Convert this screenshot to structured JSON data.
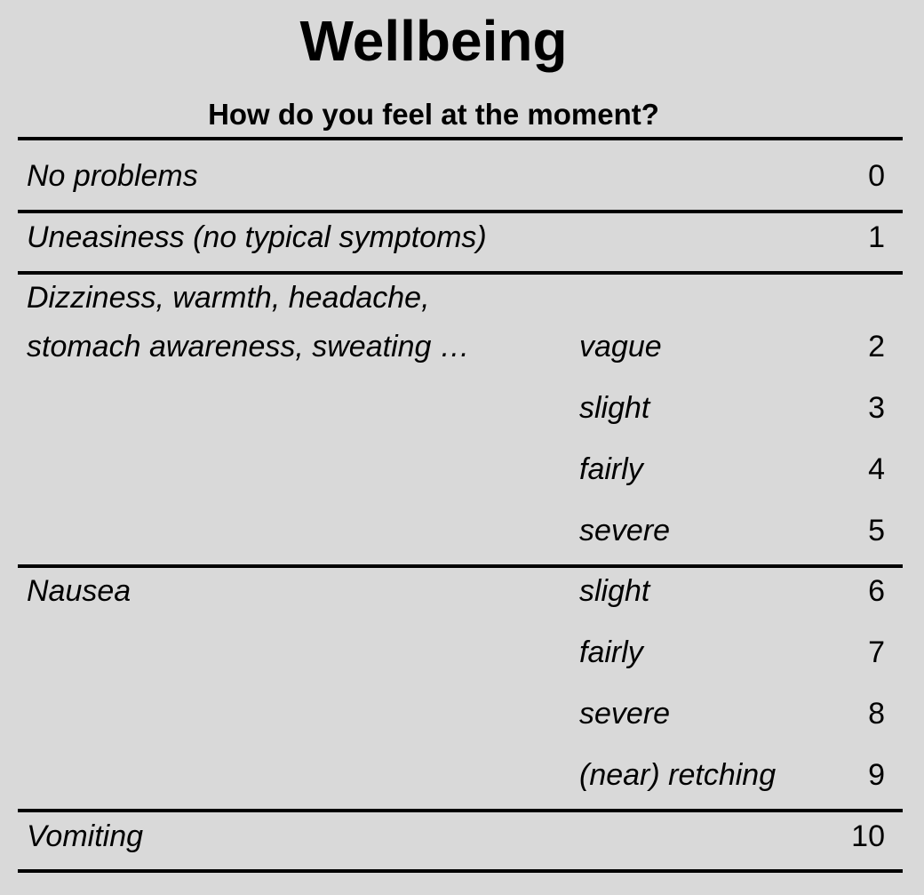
{
  "title": "Wellbeing",
  "question": "How do you feel at the moment?",
  "rows": [
    {
      "label": "No problems",
      "score": "0"
    },
    {
      "label": "Uneasiness (no typical symptoms)",
      "score": "1"
    },
    {
      "label_lines": [
        "Dizziness, warmth, headache,",
        "stomach awareness, sweating …"
      ],
      "levels": [
        {
          "qualifier": "vague",
          "score": "2"
        },
        {
          "qualifier": "slight",
          "score": "3"
        },
        {
          "qualifier": "fairly",
          "score": "4"
        },
        {
          "qualifier": "severe",
          "score": "5"
        }
      ]
    },
    {
      "label": "Nausea",
      "levels": [
        {
          "qualifier": "slight",
          "score": "6"
        },
        {
          "qualifier": "fairly",
          "score": "7"
        },
        {
          "qualifier": "severe",
          "score": "8"
        },
        {
          "qualifier": "(near) retching",
          "score": "9"
        }
      ]
    },
    {
      "label": "Vomiting",
      "score": "10"
    }
  ]
}
